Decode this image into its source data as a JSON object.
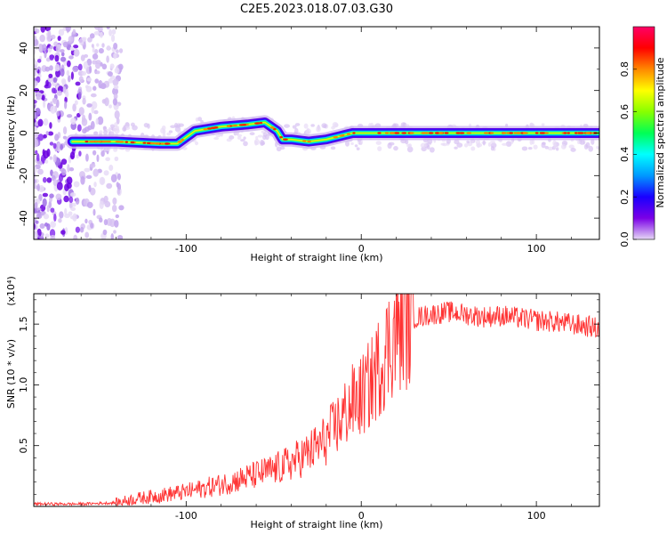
{
  "title": "C2E5.2023.018.07.03.G30",
  "chart_data": [
    {
      "type": "heatmap",
      "title": "",
      "xlabel": "Height of straight line (km)",
      "ylabel": "Frequency (Hz)",
      "xlim": [
        -187,
        136
      ],
      "ylim": [
        -50,
        50
      ],
      "xticks": [
        -100,
        0,
        100
      ],
      "yticks": [
        -40,
        -20,
        0,
        20,
        40
      ],
      "grid": false,
      "colorbar": {
        "label": "Normalized spectral amplitude",
        "range": [
          0,
          1
        ],
        "ticks": [
          "0.0",
          "0.2",
          "0.4",
          "0.6",
          "0.8"
        ],
        "colors": [
          "#e6d8f5",
          "#7a00e6",
          "#1a00ff",
          "#0099ff",
          "#00ffff",
          "#00ff55",
          "#88ff00",
          "#ffff00",
          "#ff8800",
          "#ff0000",
          "#ff0066"
        ]
      },
      "track": {
        "x": [
          -165,
          -140,
          -115,
          -105,
          -95,
          -80,
          -65,
          -55,
          -48,
          -45,
          -40,
          -30,
          -20,
          -10,
          -5,
          0,
          20,
          40,
          60,
          80,
          100,
          120,
          136
        ],
        "y": [
          -4,
          -4,
          -5,
          -5,
          1,
          3,
          4,
          5,
          1,
          -3,
          -3,
          -4,
          -3,
          -1,
          0,
          0,
          0,
          0,
          0,
          0,
          0,
          0,
          0
        ]
      }
    },
    {
      "type": "line",
      "title": "",
      "xlabel": "Height of straight line (km)",
      "ylabel": "SNR (10 * v/v)",
      "y_multiplier": "(x10⁴)",
      "xlim": [
        -187,
        136
      ],
      "ylim": [
        0,
        1.75
      ],
      "xticks": [
        -100,
        0,
        100
      ],
      "yticks": [
        "0.5",
        "1.0",
        "1.5"
      ],
      "grid": false,
      "series": [
        {
          "color": "#ff3333",
          "x": [
            -187,
            -160,
            -140,
            -130,
            -120,
            -110,
            -100,
            -90,
            -80,
            -70,
            -60,
            -50,
            -40,
            -30,
            -20,
            -15,
            -10,
            -5,
            0,
            5,
            10,
            15,
            20,
            25,
            30,
            40,
            50,
            60,
            70,
            80,
            90,
            100,
            110,
            120,
            130,
            136
          ],
          "y": [
            0.02,
            0.02,
            0.03,
            0.06,
            0.08,
            0.1,
            0.12,
            0.15,
            0.18,
            0.22,
            0.26,
            0.3,
            0.36,
            0.44,
            0.55,
            0.65,
            0.75,
            0.85,
            0.9,
            1.0,
            1.15,
            1.3,
            1.45,
            1.5,
            1.55,
            1.58,
            1.6,
            1.58,
            1.56,
            1.57,
            1.55,
            1.53,
            1.52,
            1.5,
            1.48,
            1.46
          ]
        }
      ]
    }
  ]
}
